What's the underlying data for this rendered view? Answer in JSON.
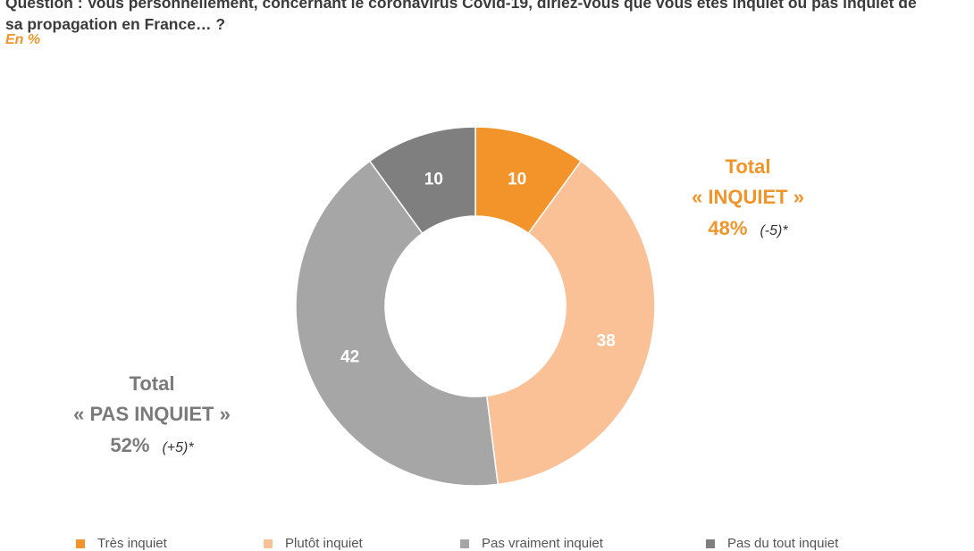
{
  "question": {
    "line1": "Question : Vous personnellement, concernant le coronavirus Covid-19, diriez-vous que vous êtes inquiet ou pas inquiet de",
    "line2": "sa propagation en France… ?",
    "unit": "En %"
  },
  "totals": {
    "inquiet": {
      "label": "Total",
      "name": "« INQUIET »",
      "value": "48%",
      "delta": "(-5)*"
    },
    "pas_inquiet": {
      "label": "Total",
      "name": "« PAS INQUIET »",
      "value": "52%",
      "delta": "(+5)*"
    }
  },
  "legend": [
    "Très inquiet",
    "Plutôt inquiet",
    "Pas vraiment inquiet",
    "Pas du tout inquiet"
  ],
  "colors": {
    "tres_inquiet": "#f2942a",
    "plutot_inquiet": "#f9c195",
    "pas_vraiment_inquiet": "#a6a6a6",
    "pas_du_tout_inquiet": "#7f7f7f",
    "accent": "#f2942a"
  },
  "chart_data": {
    "type": "pie",
    "donut": true,
    "categories": [
      "Très inquiet",
      "Plutôt inquiet",
      "Pas vraiment inquiet",
      "Pas du tout inquiet"
    ],
    "values": [
      10,
      38,
      42,
      10
    ],
    "value_labels": [
      "10",
      "38",
      "42",
      "10"
    ],
    "unit": "%",
    "legend_position": "bottom"
  }
}
